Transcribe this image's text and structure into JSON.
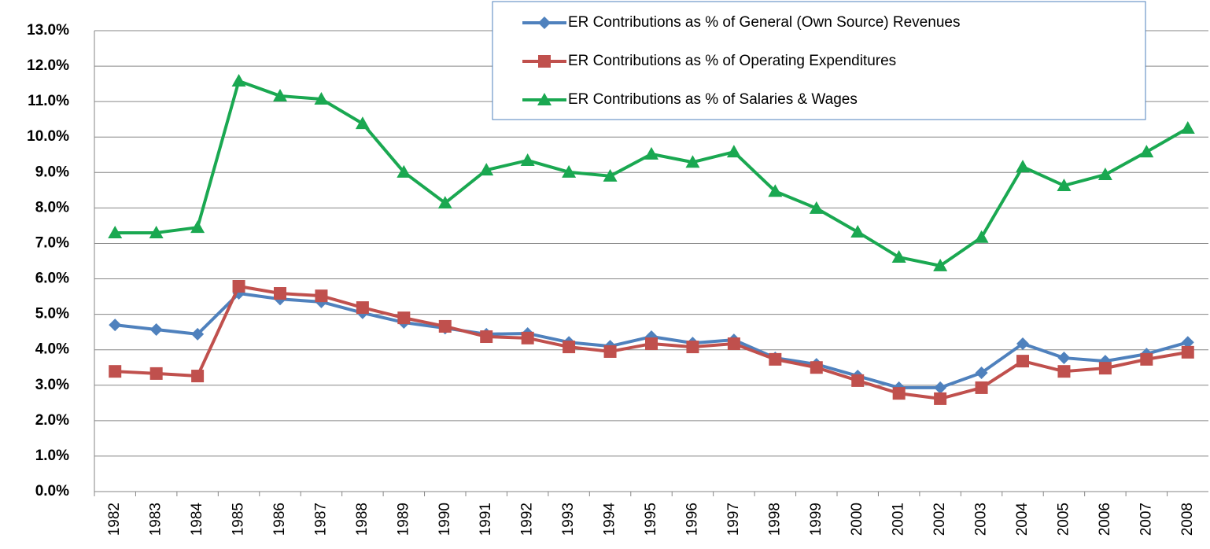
{
  "chart_data": {
    "type": "line",
    "categories": [
      "1982",
      "1983",
      "1984",
      "1985",
      "1986",
      "1987",
      "1988",
      "1989",
      "1990",
      "1991",
      "1992",
      "1993",
      "1994",
      "1995",
      "1996",
      "1997",
      "1998",
      "1999",
      "2000",
      "2001",
      "2002",
      "2003",
      "2004",
      "2005",
      "2006",
      "2007",
      "2008"
    ],
    "series": [
      {
        "name": "ER Contributions as % of General (Own Source) Revenues",
        "color": "#4f81bd",
        "marker": "diamond",
        "values": [
          4.7,
          4.57,
          4.44,
          5.59,
          5.43,
          5.35,
          5.04,
          4.77,
          4.61,
          4.44,
          4.46,
          4.21,
          4.1,
          4.37,
          4.19,
          4.28,
          3.77,
          3.59,
          3.26,
          2.93,
          2.93,
          3.35,
          4.17,
          3.77,
          3.68,
          3.88,
          4.21
        ]
      },
      {
        "name": "ER Contributions as % of Operating Expenditures",
        "color": "#c0504d",
        "marker": "square",
        "values": [
          3.39,
          3.33,
          3.26,
          5.79,
          5.59,
          5.52,
          5.19,
          4.9,
          4.66,
          4.37,
          4.33,
          4.08,
          3.95,
          4.17,
          4.08,
          4.17,
          3.73,
          3.5,
          3.13,
          2.77,
          2.62,
          2.93,
          3.68,
          3.39,
          3.48,
          3.73,
          3.93
        ]
      },
      {
        "name": "ER Contributions as % of Salaries & Wages",
        "color": "#1aa851",
        "marker": "triangle",
        "values": [
          7.3,
          7.3,
          7.45,
          11.58,
          11.16,
          11.07,
          10.38,
          9.01,
          8.14,
          9.07,
          9.34,
          9.01,
          8.9,
          9.52,
          9.29,
          9.58,
          8.47,
          7.99,
          7.32,
          6.61,
          6.37,
          7.17,
          9.16,
          8.63,
          8.94,
          9.58,
          10.25
        ]
      }
    ],
    "ylim": [
      0,
      13
    ],
    "yticks": [
      {
        "value": 0,
        "label": "0.0%"
      },
      {
        "value": 1,
        "label": "1.0%"
      },
      {
        "value": 2,
        "label": "2.0%"
      },
      {
        "value": 3,
        "label": "3.0%"
      },
      {
        "value": 4,
        "label": "4.0%"
      },
      {
        "value": 5,
        "label": "5.0%"
      },
      {
        "value": 6,
        "label": "6.0%"
      },
      {
        "value": 7,
        "label": "7.0%"
      },
      {
        "value": 8,
        "label": "8.0%"
      },
      {
        "value": 9,
        "label": "9.0%"
      },
      {
        "value": 10,
        "label": "10.0%"
      },
      {
        "value": 11,
        "label": "11.0%"
      },
      {
        "value": 12,
        "label": "12.0%"
      },
      {
        "value": 13,
        "label": "13.0%"
      }
    ],
    "grid": true,
    "legend": "top-right"
  }
}
